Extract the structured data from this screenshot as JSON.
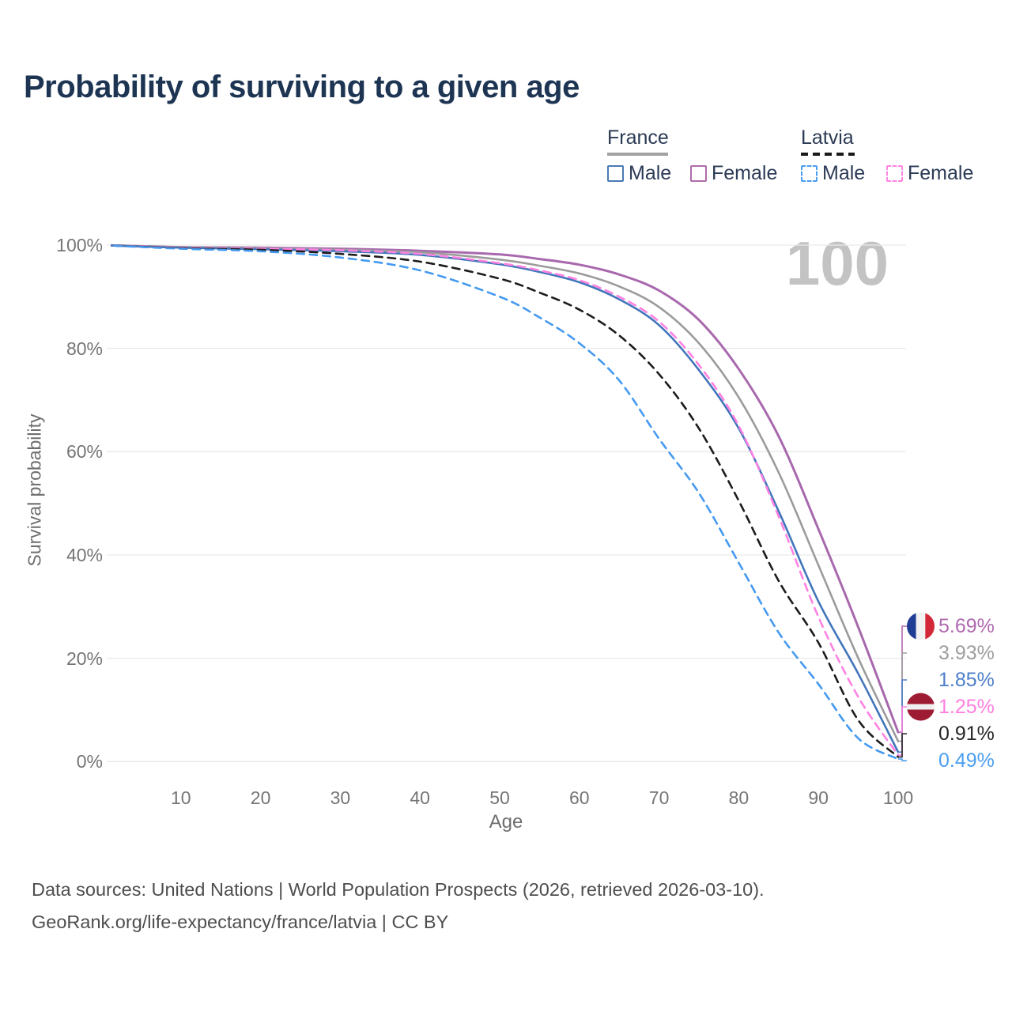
{
  "title": "Probability of surviving to a given age",
  "watermark_age": "100",
  "legend": {
    "groups": [
      {
        "name": "France",
        "line_style": "solid",
        "line_color": "#a2a2a2",
        "items": [
          {
            "label": "Male",
            "color": "#4a7ab5",
            "dashed": false
          },
          {
            "label": "Female",
            "color": "#b06cab",
            "dashed": false
          }
        ]
      },
      {
        "name": "Latvia",
        "line_style": "dashed",
        "line_color": "#1a1a1a",
        "items": [
          {
            "label": "Male",
            "color": "#4a9df0",
            "dashed": true
          },
          {
            "label": "Female",
            "color": "#ff85e3",
            "dashed": true
          }
        ]
      }
    ]
  },
  "axes": {
    "xlabel": "Age",
    "ylabel": "Survival probability",
    "x_ticks": [
      10,
      20,
      30,
      40,
      50,
      60,
      70,
      80,
      90,
      100
    ],
    "y_ticks": [
      {
        "value": 0,
        "label": "0%"
      },
      {
        "value": 20,
        "label": "20%"
      },
      {
        "value": 40,
        "label": "40%"
      },
      {
        "value": 60,
        "label": "60%"
      },
      {
        "value": 80,
        "label": "80%"
      },
      {
        "value": 100,
        "label": "100%"
      }
    ]
  },
  "chart_data": {
    "type": "line",
    "title": "Probability of surviving to a given age",
    "xlabel": "Age",
    "ylabel": "Survival probability",
    "xlim": [
      0,
      100
    ],
    "ylim": [
      0,
      100
    ],
    "grid": true,
    "legend_position": "top-right",
    "x": [
      0,
      10,
      20,
      30,
      40,
      50,
      55,
      60,
      65,
      70,
      75,
      80,
      85,
      90,
      95,
      100
    ],
    "series": [
      {
        "name": "France Female",
        "country": "France",
        "sex": "Female",
        "color": "#a868ad",
        "dashed": false,
        "flag": "france",
        "end_label": "5.69%",
        "end_label_color": "#b06ab0",
        "end_value_pct": 5.69,
        "values": [
          100,
          99.6,
          99.5,
          99.3,
          98.9,
          98.2,
          97.3,
          96.2,
          94.3,
          91.2,
          85.5,
          76,
          63,
          45,
          26,
          5.69
        ]
      },
      {
        "name": "France",
        "country": "France",
        "sex": "Both",
        "color": "#9b9b9b",
        "dashed": false,
        "flag": "france",
        "end_label": "3.93%",
        "end_label_color": "#9e9e9e",
        "end_value_pct": 3.93,
        "values": [
          100,
          99.6,
          99.4,
          99.1,
          98.6,
          97.2,
          96,
          94.5,
          92,
          88,
          81,
          70.5,
          56,
          38,
          20,
          3.93
        ]
      },
      {
        "name": "France Male",
        "country": "France",
        "sex": "Male",
        "color": "#4276bb",
        "dashed": false,
        "flag": "france",
        "end_label": "1.85%",
        "end_label_color": "#4d7fc9",
        "end_value_pct": 1.85,
        "values": [
          100,
          99.5,
          99.2,
          98.8,
          98.1,
          96.3,
          94.8,
          92.8,
          89.5,
          84.5,
          75.8,
          64.5,
          48.5,
          31,
          17,
          1.85
        ]
      },
      {
        "name": "Latvia Female",
        "country": "Latvia",
        "sex": "Female",
        "color": "#ff82e2",
        "dashed": true,
        "flag": "latvia",
        "end_label": "1.25%",
        "end_label_color": "#ff80df",
        "end_value_pct": 1.25,
        "values": [
          100,
          99.5,
          99.3,
          99,
          98.3,
          96.5,
          95.1,
          93.2,
          90,
          85.2,
          76.8,
          65,
          47.5,
          28,
          12.5,
          1.25
        ]
      },
      {
        "name": "Latvia",
        "country": "Latvia",
        "sex": "Both",
        "color": "#1c1c1c",
        "dashed": true,
        "flag": "latvia",
        "end_label": "0.91%",
        "end_label_color": "#252525",
        "end_value_pct": 0.91,
        "values": [
          100,
          99.4,
          99.1,
          98.3,
          96.8,
          93.5,
          90.8,
          87.5,
          82.5,
          75,
          64.5,
          50.5,
          35,
          23,
          8,
          0.91
        ]
      },
      {
        "name": "Latvia Male",
        "country": "Latvia",
        "sex": "Male",
        "color": "#459af0",
        "dashed": true,
        "flag": "latvia",
        "end_label": "0.49%",
        "end_label_color": "#4d9ef0",
        "end_value_pct": 0.49,
        "values": [
          100,
          99.3,
          98.8,
          97.6,
          95.1,
          90,
          86,
          81,
          73.8,
          62.5,
          52,
          38.5,
          25,
          15,
          4.5,
          0.49
        ]
      }
    ]
  },
  "flag_colors": {
    "france_blue": "#1f3d94",
    "france_white": "#f2f2f2",
    "france_red": "#d22839",
    "latvia_red": "#9e1b34",
    "latvia_white": "#f0f0f0"
  },
  "footer": {
    "line1": "Data sources: United Nations | World Population Prospects (2026, retrieved 2026-03-10).",
    "line2": "GeoRank.org/life-expectancy/france/latvia | CC BY"
  }
}
